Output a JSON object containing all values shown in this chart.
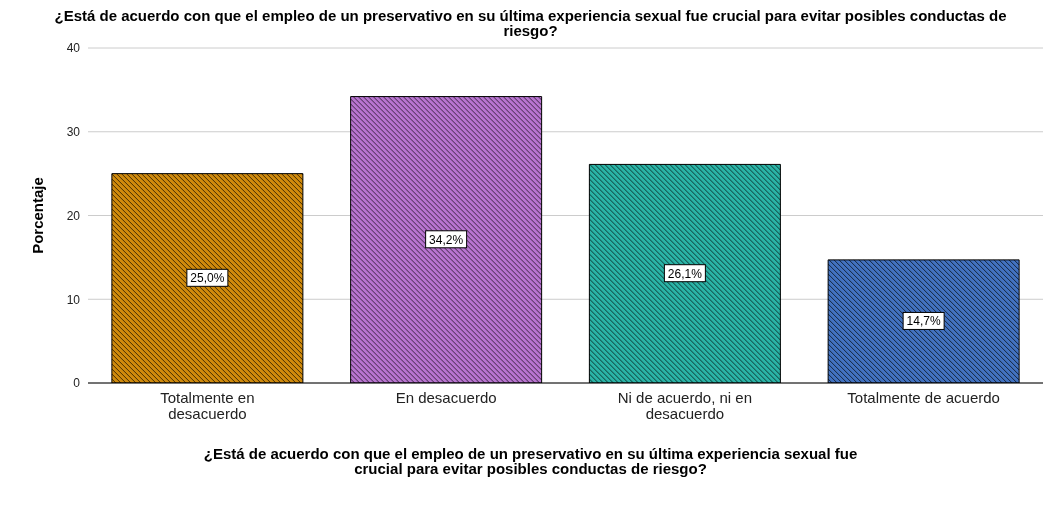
{
  "chart_data": {
    "type": "bar",
    "title": "¿Está de acuerdo con que el empleo de un preservativo en su última experiencia sexual fue crucial para evitar posibles conductas de riesgo?",
    "xlabel": "¿Está de acuerdo con que el empleo de un preservativo en su última experiencia sexual fue crucial para evitar posibles conductas de riesgo?",
    "ylabel": "Porcentaje",
    "categories": [
      "Totalmente en desacuerdo",
      "En desacuerdo",
      "Ni de acuerdo, ni en desacuerdo",
      "Totalmente de acuerdo"
    ],
    "values": [
      25.0,
      34.2,
      26.1,
      14.7
    ],
    "colors": [
      "#d08a0c",
      "#b874d0",
      "#2ab3a6",
      "#4272c0"
    ],
    "value_labels": [
      "25,0%",
      "34,2%",
      "26,1%",
      "14,7%"
    ],
    "ylim": [
      0,
      40
    ],
    "yticks": [
      0,
      10,
      20,
      30,
      40
    ],
    "grid": "y"
  }
}
